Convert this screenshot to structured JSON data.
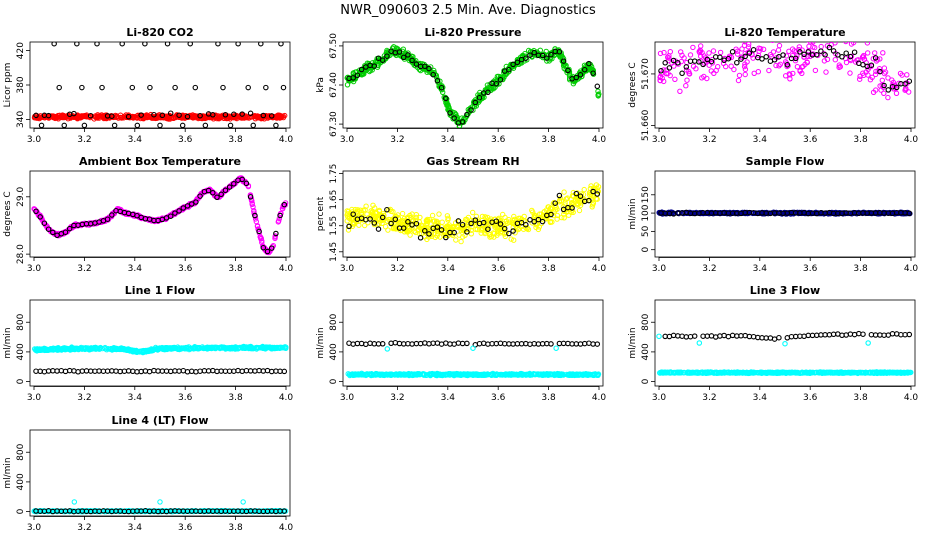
{
  "figure_title": "NWR_090603  2.5 Min. Ave. Diagnostics",
  "chart_data": [
    {
      "type": "scatter",
      "title": "Li-820 CO2",
      "ylabel": "Licor ppm",
      "xlim": [
        3.0,
        4.0
      ],
      "ylim": [
        330,
        430
      ],
      "x_ticks": [
        "3.0",
        "3.2",
        "3.4",
        "3.6",
        "3.8",
        "4.0"
      ],
      "y_ticks": [
        340,
        380,
        420
      ],
      "y_tick_labels": [
        "340",
        "380",
        "420"
      ],
      "series": [
        {
          "name": "raw",
          "color": "#ff0000",
          "kind": "dense",
          "baseline": 343,
          "amplitude": 1,
          "noise": 1
        },
        {
          "name": "average",
          "color": "#000000",
          "kind": "avg",
          "baseline": 345,
          "jitter": 1,
          "outliers": [
            [
              3.03,
              333
            ],
            [
              3.08,
              428
            ],
            [
              3.1,
              377
            ],
            [
              3.12,
              333
            ],
            [
              3.17,
              428
            ],
            [
              3.19,
              377
            ],
            [
              3.2,
              333
            ],
            [
              3.25,
              428
            ],
            [
              3.27,
              377
            ],
            [
              3.32,
              333
            ],
            [
              3.35,
              428
            ],
            [
              3.39,
              377
            ],
            [
              3.41,
              333
            ],
            [
              3.44,
              428
            ],
            [
              3.46,
              377
            ],
            [
              3.5,
              333
            ],
            [
              3.53,
              428
            ],
            [
              3.56,
              377
            ],
            [
              3.59,
              333
            ],
            [
              3.62,
              428
            ],
            [
              3.64,
              377
            ],
            [
              3.68,
              333
            ],
            [
              3.73,
              428
            ],
            [
              3.75,
              377
            ],
            [
              3.78,
              333
            ],
            [
              3.81,
              428
            ],
            [
              3.85,
              377
            ],
            [
              3.87,
              333
            ],
            [
              3.9,
              428
            ],
            [
              3.92,
              377
            ],
            [
              3.96,
              333
            ],
            [
              3.98,
              428
            ],
            [
              3.99,
              377
            ]
          ]
        }
      ]
    },
    {
      "type": "scatter",
      "title": "Li-820 Pressure",
      "ylabel": "kPa",
      "xlim": [
        3.0,
        4.0
      ],
      "ylim": [
        67.29,
        67.51
      ],
      "x_ticks": [
        "3.0",
        "3.2",
        "3.4",
        "3.6",
        "3.8",
        "4.0"
      ],
      "y_ticks": [
        67.3,
        67.4,
        67.5
      ],
      "y_tick_labels": [
        "67.30",
        "67.40",
        "67.50"
      ],
      "series": [
        {
          "name": "raw",
          "color": "#00cc00",
          "kind": "dense",
          "noise": 0.006,
          "curve": [
            [
              3.0,
              67.41
            ],
            [
              3.05,
              67.43
            ],
            [
              3.1,
              67.45
            ],
            [
              3.15,
              67.47
            ],
            [
              3.18,
              67.49
            ],
            [
              3.22,
              67.48
            ],
            [
              3.28,
              67.45
            ],
            [
              3.33,
              67.44
            ],
            [
              3.37,
              67.4
            ],
            [
              3.41,
              67.33
            ],
            [
              3.45,
              67.3
            ],
            [
              3.48,
              67.33
            ],
            [
              3.52,
              67.36
            ],
            [
              3.56,
              67.39
            ],
            [
              3.6,
              67.41
            ],
            [
              3.64,
              67.44
            ],
            [
              3.68,
              67.46
            ],
            [
              3.72,
              67.48
            ],
            [
              3.76,
              67.48
            ],
            [
              3.8,
              67.47
            ],
            [
              3.84,
              67.49
            ],
            [
              3.87,
              67.44
            ],
            [
              3.9,
              67.41
            ],
            [
              3.93,
              67.43
            ],
            [
              3.96,
              67.45
            ],
            [
              3.98,
              67.43
            ],
            [
              4.0,
              67.37
            ]
          ]
        },
        {
          "name": "average",
          "color": "#000000",
          "kind": "avg",
          "jitter": 0.004
        }
      ]
    },
    {
      "type": "scatter",
      "title": "Li-820 Temperature",
      "ylabel": "degrees C",
      "xlim": [
        3.0,
        4.0
      ],
      "ylim": [
        51.6595,
        51.6762
      ],
      "x_ticks": [
        "3.0",
        "3.2",
        "3.4",
        "3.6",
        "3.8",
        "4.0"
      ],
      "y_ticks": [
        51.66,
        51.67
      ],
      "y_tick_labels": [
        "51.660",
        "51.670"
      ],
      "series": [
        {
          "name": "raw",
          "color": "#ff00ff",
          "kind": "sparse",
          "noise": 0.0022,
          "curve": [
            [
              3.0,
              51.6715
            ],
            [
              3.1,
              51.6715
            ],
            [
              3.2,
              51.6725
            ],
            [
              3.3,
              51.673
            ],
            [
              3.4,
              51.673
            ],
            [
              3.5,
              51.673
            ],
            [
              3.6,
              51.674
            ],
            [
              3.7,
              51.674
            ],
            [
              3.8,
              51.673
            ],
            [
              3.86,
              51.672
            ],
            [
              3.9,
              51.668
            ],
            [
              3.95,
              51.667
            ],
            [
              4.0,
              51.669
            ]
          ]
        },
        {
          "name": "average",
          "color": "#000000",
          "kind": "avg",
          "jitter": 0.0007
        }
      ]
    },
    {
      "type": "scatter",
      "title": "Ambient Box Temperature",
      "ylabel": "degrees C",
      "xlim": [
        3.0,
        4.0
      ],
      "ylim": [
        27.95,
        29.45
      ],
      "x_ticks": [
        "3.0",
        "3.2",
        "3.4",
        "3.6",
        "3.8",
        "4.0"
      ],
      "y_ticks": [
        28.0,
        29.0
      ],
      "y_tick_labels": [
        "28.0",
        "29.0"
      ],
      "series": [
        {
          "name": "raw",
          "color": "#ff00ff",
          "kind": "dense",
          "noise": 0.01,
          "curve": [
            [
              3.0,
              28.8
            ],
            [
              3.03,
              28.62
            ],
            [
              3.06,
              28.42
            ],
            [
              3.09,
              28.33
            ],
            [
              3.12,
              28.37
            ],
            [
              3.16,
              28.5
            ],
            [
              3.2,
              28.52
            ],
            [
              3.26,
              28.55
            ],
            [
              3.3,
              28.63
            ],
            [
              3.33,
              28.78
            ],
            [
              3.36,
              28.72
            ],
            [
              3.4,
              28.68
            ],
            [
              3.44,
              28.62
            ],
            [
              3.48,
              28.58
            ],
            [
              3.52,
              28.62
            ],
            [
              3.56,
              28.72
            ],
            [
              3.6,
              28.82
            ],
            [
              3.64,
              28.9
            ],
            [
              3.67,
              29.08
            ],
            [
              3.7,
              29.12
            ],
            [
              3.73,
              28.98
            ],
            [
              3.76,
              29.12
            ],
            [
              3.79,
              29.22
            ],
            [
              3.82,
              29.33
            ],
            [
              3.85,
              29.2
            ],
            [
              3.88,
              28.6
            ],
            [
              3.91,
              28.12
            ],
            [
              3.93,
              28.02
            ],
            [
              3.95,
              28.15
            ],
            [
              3.97,
              28.58
            ],
            [
              3.99,
              28.85
            ],
            [
              4.0,
              28.88
            ]
          ]
        },
        {
          "name": "average",
          "color": "#000000",
          "kind": "avg",
          "jitter": 0.005
        }
      ]
    },
    {
      "type": "scatter",
      "title": "Gas Stream RH",
      "ylabel": "percent",
      "xlim": [
        3.0,
        4.0
      ],
      "ylim": [
        1.43,
        1.76
      ],
      "x_ticks": [
        "3.0",
        "3.2",
        "3.4",
        "3.6",
        "3.8",
        "4.0"
      ],
      "y_ticks": [
        1.45,
        1.55,
        1.65,
        1.75
      ],
      "y_tick_labels": [
        "1.45",
        "1.55",
        "1.65",
        "1.75"
      ],
      "series": [
        {
          "name": "raw",
          "color": "#ffff00",
          "kind": "dense",
          "noise": 0.022,
          "curve": [
            [
              3.0,
              1.575
            ],
            [
              3.1,
              1.585
            ],
            [
              3.2,
              1.565
            ],
            [
              3.3,
              1.545
            ],
            [
              3.4,
              1.54
            ],
            [
              3.5,
              1.545
            ],
            [
              3.6,
              1.545
            ],
            [
              3.7,
              1.555
            ],
            [
              3.76,
              1.58
            ],
            [
              3.82,
              1.61
            ],
            [
              3.9,
              1.64
            ],
            [
              3.95,
              1.66
            ],
            [
              4.0,
              1.68
            ]
          ]
        },
        {
          "name": "average",
          "color": "#000000",
          "kind": "avg",
          "jitter": 0.02
        }
      ]
    },
    {
      "type": "scatter",
      "title": "Sample Flow",
      "ylabel": "ml/min",
      "xlim": [
        3.0,
        4.0
      ],
      "ylim": [
        -20,
        215
      ],
      "x_ticks": [
        "3.0",
        "3.2",
        "3.4",
        "3.6",
        "3.8",
        "4.0"
      ],
      "y_ticks": [
        0,
        50,
        100,
        150
      ],
      "y_tick_labels": [
        "0",
        "50",
        "100",
        "150"
      ],
      "series": [
        {
          "name": "raw",
          "color": "#00008b",
          "kind": "dense",
          "baseline": 100,
          "noise": 1
        },
        {
          "name": "average",
          "color": "#000000",
          "kind": "avg",
          "baseline": 100,
          "jitter": 0.8
        }
      ]
    },
    {
      "type": "scatter",
      "title": "Line 1 Flow",
      "ylabel": "ml/min",
      "xlim": [
        3.0,
        4.0
      ],
      "ylim": [
        -60,
        1100
      ],
      "x_ticks": [
        "3.0",
        "3.2",
        "3.4",
        "3.6",
        "3.8",
        "4.0"
      ],
      "y_ticks": [
        0,
        400,
        800
      ],
      "y_tick_labels": [
        "0",
        "400",
        "800"
      ],
      "series": [
        {
          "name": "raw",
          "color": "#00ffff",
          "kind": "dense",
          "noise": 8,
          "curve": [
            [
              3.0,
              430
            ],
            [
              3.2,
              445
            ],
            [
              3.35,
              440
            ],
            [
              3.42,
              400
            ],
            [
              3.5,
              445
            ],
            [
              3.7,
              455
            ],
            [
              4.0,
              455
            ]
          ]
        },
        {
          "name": "average",
          "color": "#000000",
          "kind": "avg",
          "baseline": 140,
          "jitter": 4
        }
      ]
    },
    {
      "type": "scatter",
      "title": "Line 2 Flow",
      "ylabel": "ml/min",
      "xlim": [
        3.0,
        4.0
      ],
      "ylim": [
        -60,
        1100
      ],
      "x_ticks": [
        "3.0",
        "3.2",
        "3.4",
        "3.6",
        "3.8",
        "4.0"
      ],
      "y_ticks": [
        0,
        400,
        800
      ],
      "y_tick_labels": [
        "0",
        "400",
        "800"
      ],
      "series": [
        {
          "name": "raw",
          "color": "#00ffff",
          "kind": "dense",
          "baseline": 95,
          "noise": 6
        },
        {
          "name": "average",
          "color": "#000000",
          "kind": "avg",
          "baseline": 510,
          "jitter": 5,
          "outliers": [
            [
              3.16,
              440
            ],
            [
              3.5,
              450
            ],
            [
              3.83,
              450
            ]
          ]
        }
      ]
    },
    {
      "type": "scatter",
      "title": "Line 3 Flow",
      "ylabel": "ml/min",
      "xlim": [
        3.0,
        4.0
      ],
      "ylim": [
        -60,
        1100
      ],
      "x_ticks": [
        "3.0",
        "3.2",
        "3.4",
        "3.6",
        "3.8",
        "4.0"
      ],
      "y_ticks": [
        0,
        400,
        800
      ],
      "y_tick_labels": [
        "0",
        "400",
        "800"
      ],
      "series": [
        {
          "name": "raw",
          "color": "#00ffff",
          "kind": "dense",
          "baseline": 120,
          "noise": 4
        },
        {
          "name": "average",
          "color": "#000000",
          "kind": "avg",
          "jitter": 6,
          "curve": [
            [
              3.0,
              610
            ],
            [
              3.2,
              610
            ],
            [
              3.35,
              615
            ],
            [
              3.45,
              580
            ],
            [
              3.55,
              615
            ],
            [
              3.7,
              635
            ],
            [
              4.0,
              635
            ]
          ],
          "outliers": [
            [
              3.0,
              610
            ],
            [
              3.16,
              520
            ],
            [
              3.5,
              510
            ],
            [
              3.83,
              520
            ]
          ]
        }
      ]
    },
    {
      "type": "scatter",
      "title": "Line 4 (LT) Flow",
      "ylabel": "ml/min",
      "xlim": [
        3.0,
        4.0
      ],
      "ylim": [
        -60,
        1100
      ],
      "x_ticks": [
        "3.0",
        "3.2",
        "3.4",
        "3.6",
        "3.8",
        "4.0"
      ],
      "y_ticks": [
        0,
        400,
        800
      ],
      "y_tick_labels": [
        "0",
        "400",
        "800"
      ],
      "series": [
        {
          "name": "raw",
          "color": "#00ffff",
          "kind": "dense",
          "baseline": 5,
          "noise": 3,
          "outliers": [
            [
              3.16,
              130
            ],
            [
              3.5,
              130
            ],
            [
              3.83,
              130
            ]
          ]
        },
        {
          "name": "average",
          "color": "#000000",
          "kind": "avg",
          "baseline": 5,
          "jitter": 2
        }
      ]
    }
  ]
}
